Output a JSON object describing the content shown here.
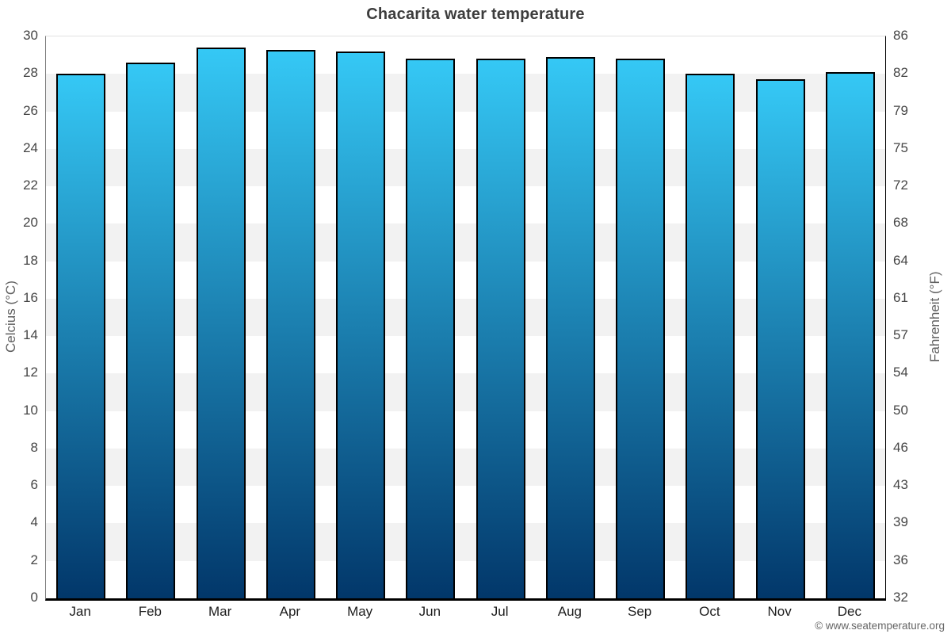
{
  "chart_data": {
    "type": "bar",
    "title": "Chacarita water temperature",
    "categories": [
      "Jan",
      "Feb",
      "Mar",
      "Apr",
      "May",
      "Jun",
      "Jul",
      "Aug",
      "Sep",
      "Oct",
      "Nov",
      "Dec"
    ],
    "values": [
      28.0,
      28.6,
      29.4,
      29.3,
      29.2,
      28.8,
      28.8,
      28.9,
      28.8,
      28.0,
      27.7,
      28.1
    ],
    "unit": "°C",
    "ylabel_left": "Celcius (°C)",
    "ylabel_right": "Fahrenheit (°F)",
    "yticks_celsius": [
      30,
      28,
      26,
      24,
      22,
      20,
      18,
      16,
      14,
      12,
      10,
      8,
      6,
      4,
      2,
      0
    ],
    "yticks_fahrenheit": [
      86,
      82,
      79,
      75,
      72,
      68,
      64,
      61,
      57,
      54,
      50,
      46,
      43,
      39,
      36,
      32
    ],
    "ylim": [
      0,
      30
    ],
    "band_step_celsius": 2,
    "legend": "none",
    "footer": "© www.seatemperature.org",
    "colors": {
      "bar_gradient_top": "#35c8f5",
      "bar_gradient_bottom": "#02376a",
      "bar_border": "#000000",
      "band_fill": "#f2f2f2",
      "plot_background": "#ffffff",
      "title_text": "#3d3d3d",
      "tick_text": "#454545",
      "axis_title_text": "#5f5f5f",
      "footer_text": "#666666"
    }
  }
}
